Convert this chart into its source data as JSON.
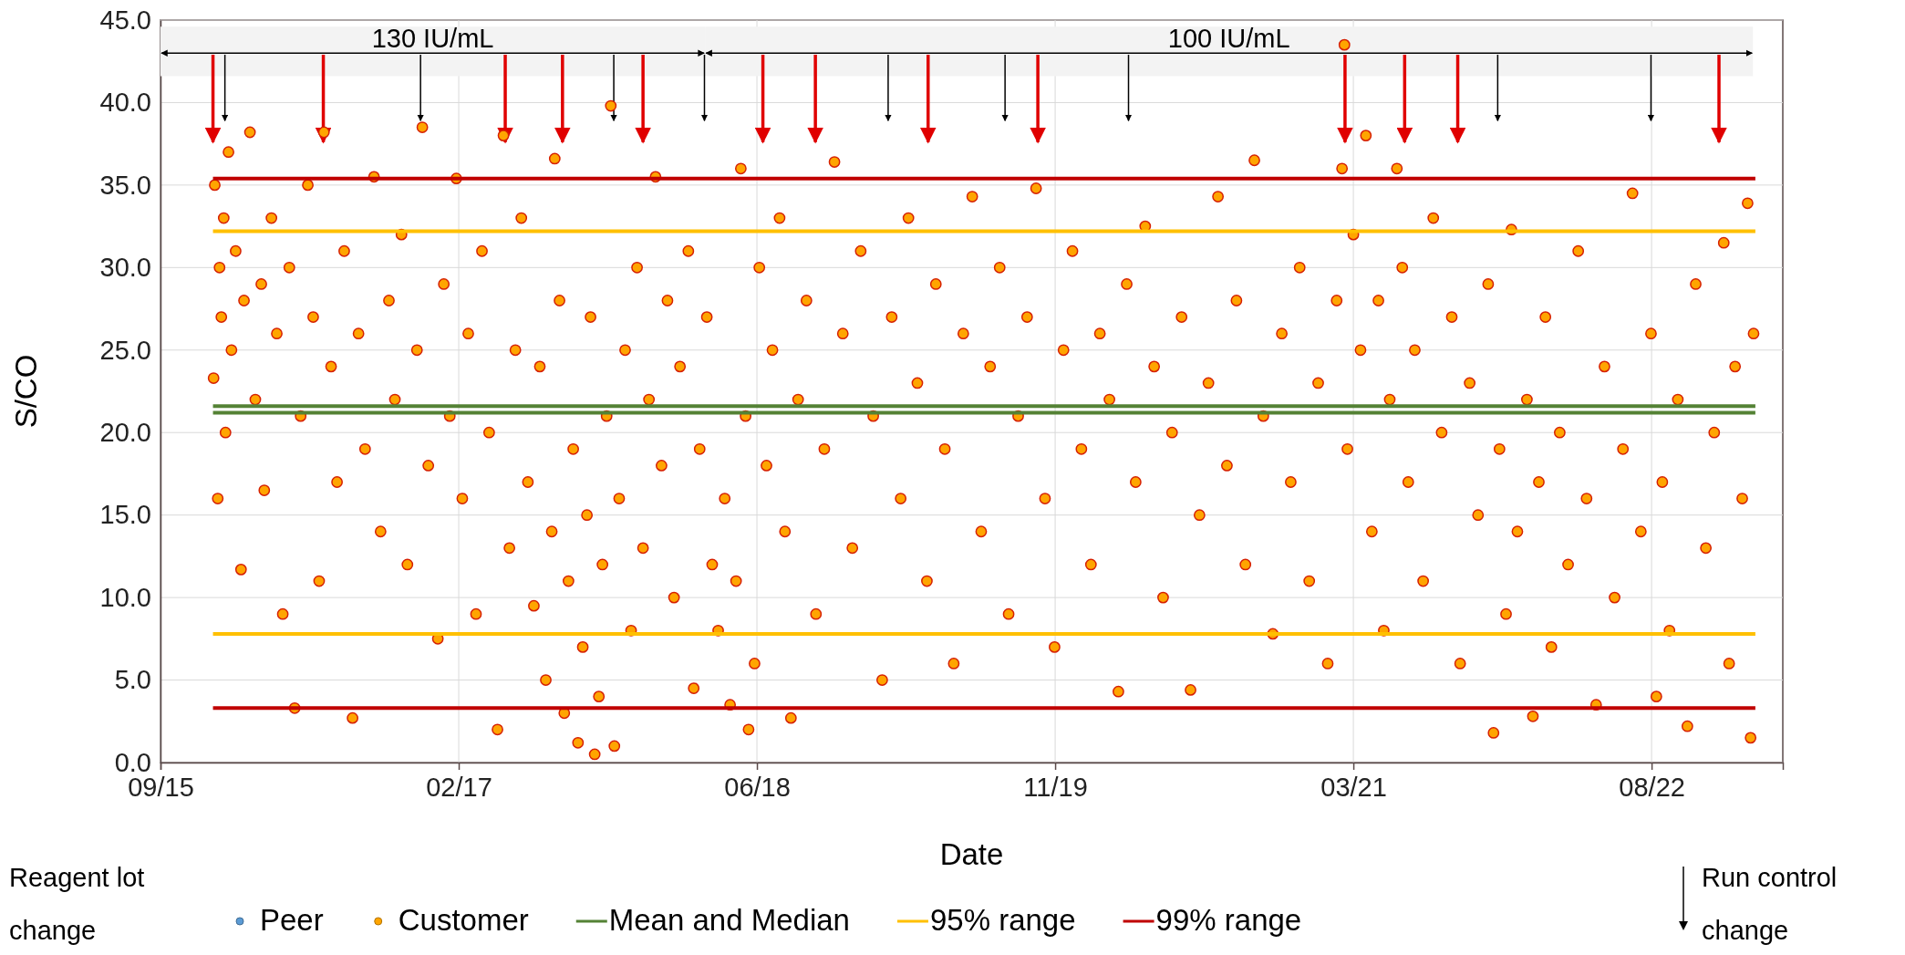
{
  "chart_data": {
    "type": "scatter",
    "xlabel": "Date",
    "ylabel": "S/CO",
    "xlim": [
      "2015-09-28",
      "2023-03-10"
    ],
    "xticks": [
      {
        "value": "2015-09-28",
        "label": "09/15"
      },
      {
        "value": "2017-02-09",
        "label": "02/17"
      },
      {
        "value": "2018-06-24",
        "label": "06/18"
      },
      {
        "value": "2019-11-06",
        "label": "11/19"
      },
      {
        "value": "2021-03-20",
        "label": "03/21"
      },
      {
        "value": "2022-08-02",
        "label": "08/22"
      }
    ],
    "ylim": [
      0,
      45
    ],
    "yticks": [
      {
        "value": 0,
        "label": "0.0"
      },
      {
        "value": 5,
        "label": "5.0"
      },
      {
        "value": 10,
        "label": "10.0"
      },
      {
        "value": 15,
        "label": "15.0"
      },
      {
        "value": 20,
        "label": "20.0"
      },
      {
        "value": 25,
        "label": "25.0"
      },
      {
        "value": 30,
        "label": "30.0"
      },
      {
        "value": 35,
        "label": "35.0"
      },
      {
        "value": 40,
        "label": "40.0"
      },
      {
        "value": 45,
        "label": "45.0"
      }
    ],
    "grid": true,
    "legend": "bottom",
    "marker": "circle",
    "series": [
      {
        "name": "Peer",
        "color": "#5b9bd5"
      },
      {
        "name": "Customer",
        "color": "#ffa500",
        "x": [
          "2015-12-26",
          "2015-12-28",
          "2016-01-02",
          "2016-01-05",
          "2016-01-08",
          "2016-01-12",
          "2016-01-15",
          "2016-01-20",
          "2016-01-25",
          "2016-02-01",
          "2016-02-10",
          "2016-02-15",
          "2016-02-25",
          "2016-03-05",
          "2016-03-15",
          "2016-03-20",
          "2016-04-01",
          "2016-04-10",
          "2016-04-20",
          "2016-05-01",
          "2016-05-10",
          "2016-05-20",
          "2016-06-01",
          "2016-06-10",
          "2016-06-20",
          "2016-06-28",
          "2016-07-10",
          "2016-07-20",
          "2016-08-01",
          "2016-08-15",
          "2016-08-25",
          "2016-09-05",
          "2016-09-20",
          "2016-10-01",
          "2016-10-15",
          "2016-10-25",
          "2016-11-05",
          "2016-11-15",
          "2016-12-01",
          "2016-12-10",
          "2016-12-20",
          "2017-01-05",
          "2017-01-15",
          "2017-01-25",
          "2017-02-05",
          "2017-02-15",
          "2017-02-25",
          "2017-03-10",
          "2017-03-20",
          "2017-04-01",
          "2017-04-15",
          "2017-04-25",
          "2017-05-05",
          "2017-05-15",
          "2017-05-25",
          "2017-06-05",
          "2017-06-15",
          "2017-06-25",
          "2017-07-05",
          "2017-07-15",
          "2017-07-20",
          "2017-07-28",
          "2017-08-05",
          "2017-08-12",
          "2017-08-20",
          "2017-08-28",
          "2017-09-05",
          "2017-09-12",
          "2017-09-18",
          "2017-09-25",
          "2017-10-02",
          "2017-10-08",
          "2017-10-15",
          "2017-10-22",
          "2017-10-28",
          "2017-11-05",
          "2017-11-15",
          "2017-11-25",
          "2017-12-05",
          "2017-12-15",
          "2017-12-25",
          "2018-01-05",
          "2018-01-15",
          "2018-01-25",
          "2018-02-05",
          "2018-02-15",
          "2018-03-01",
          "2018-03-10",
          "2018-03-20",
          "2018-04-01",
          "2018-04-10",
          "2018-04-20",
          "2018-05-01",
          "2018-05-10",
          "2018-05-20",
          "2018-05-28",
          "2018-06-05",
          "2018-06-10",
          "2018-06-20",
          "2018-06-28",
          "2018-07-10",
          "2018-07-20",
          "2018-08-01",
          "2018-08-10",
          "2018-08-20",
          "2018-09-01",
          "2018-09-15",
          "2018-10-01",
          "2018-10-15",
          "2018-11-01",
          "2018-11-15",
          "2018-12-01",
          "2018-12-15",
          "2019-01-05",
          "2019-01-20",
          "2019-02-05",
          "2019-02-20",
          "2019-03-05",
          "2019-03-20",
          "2019-04-05",
          "2019-04-20",
          "2019-05-05",
          "2019-05-20",
          "2019-06-05",
          "2019-06-20",
          "2019-07-05",
          "2019-07-20",
          "2019-08-05",
          "2019-08-20",
          "2019-09-05",
          "2019-09-20",
          "2019-10-05",
          "2019-10-20",
          "2019-11-05",
          "2019-11-20",
          "2019-12-05",
          "2019-12-20",
          "2020-01-05",
          "2020-01-20",
          "2020-02-05",
          "2020-02-20",
          "2020-03-05",
          "2020-03-20",
          "2020-04-05",
          "2020-04-20",
          "2020-05-05",
          "2020-05-20",
          "2020-06-05",
          "2020-06-20",
          "2020-07-05",
          "2020-07-20",
          "2020-08-05",
          "2020-08-20",
          "2020-09-05",
          "2020-09-20",
          "2020-10-05",
          "2020-10-20",
          "2020-11-05",
          "2020-11-20",
          "2020-12-05",
          "2020-12-20",
          "2021-01-05",
          "2021-01-20",
          "2021-02-05",
          "2021-02-20",
          "2021-03-01",
          "2021-03-05",
          "2021-03-10",
          "2021-03-20",
          "2021-04-01",
          "2021-04-10",
          "2021-04-20",
          "2021-05-01",
          "2021-05-10",
          "2021-05-20",
          "2021-06-01",
          "2021-06-10",
          "2021-06-20",
          "2021-07-01",
          "2021-07-15",
          "2021-08-01",
          "2021-08-15",
          "2021-09-01",
          "2021-09-15",
          "2021-10-01",
          "2021-10-15",
          "2021-11-01",
          "2021-11-10",
          "2021-11-20",
          "2021-12-01",
          "2021-12-10",
          "2021-12-20",
          "2022-01-05",
          "2022-01-15",
          "2022-01-25",
          "2022-02-05",
          "2022-02-15",
          "2022-03-01",
          "2022-03-15",
          "2022-04-01",
          "2022-04-15",
          "2022-05-01",
          "2022-05-15",
          "2022-06-01",
          "2022-06-15",
          "2022-07-01",
          "2022-07-15",
          "2022-08-01",
          "2022-08-10",
          "2022-08-20",
          "2022-09-01",
          "2022-09-15",
          "2022-10-01",
          "2022-10-15",
          "2022-11-01",
          "2022-11-15",
          "2022-12-01",
          "2022-12-10",
          "2022-12-20",
          "2023-01-01",
          "2023-01-10",
          "2023-01-15",
          "2023-01-20"
        ],
        "values": [
          23.3,
          35,
          16,
          30,
          27,
          33,
          20,
          37,
          25,
          31,
          11.7,
          28,
          38.2,
          22,
          29,
          16.5,
          33,
          26,
          9,
          30,
          3.3,
          21,
          35,
          27,
          11,
          38.2,
          24,
          17,
          31,
          2.7,
          26,
          19,
          35.5,
          14,
          28,
          22,
          32,
          12,
          25,
          38.5,
          18,
          7.5,
          29,
          21,
          35.4,
          16,
          26,
          9,
          31,
          20,
          2,
          38,
          13,
          25,
          33,
          17,
          9.5,
          24,
          5,
          14,
          36.6,
          28,
          3,
          11,
          19,
          1.2,
          7,
          15,
          27,
          0.5,
          4,
          12,
          21,
          39.8,
          1,
          16,
          25,
          8,
          30,
          13,
          22,
          35.5,
          18,
          28,
          10,
          24,
          31,
          4.5,
          19,
          27,
          12,
          8,
          16,
          3.5,
          11,
          36,
          21,
          2,
          6,
          30,
          18,
          25,
          33,
          14,
          2.7,
          22,
          28,
          9,
          19,
          36.4,
          26,
          13,
          31,
          21,
          5,
          27,
          16,
          33,
          23,
          11,
          29,
          19,
          6,
          26,
          34.3,
          14,
          24,
          30,
          9,
          21,
          27,
          34.8,
          16,
          7,
          25,
          31,
          19,
          12,
          26,
          22,
          4.3,
          29,
          17,
          32.5,
          24,
          10,
          20,
          27,
          4.4,
          15,
          23,
          34.3,
          18,
          28,
          12,
          36.5,
          21,
          7.8,
          26,
          17,
          30,
          11,
          23,
          6,
          28,
          36,
          43.5,
          19,
          32,
          25,
          38,
          14,
          28,
          8,
          22,
          36,
          30,
          17,
          25,
          11,
          33,
          20,
          27,
          6,
          23,
          15,
          29,
          1.8,
          19,
          9,
          32.3,
          14,
          22,
          2.8,
          17,
          27,
          7,
          20,
          12,
          31,
          16,
          3.5,
          24,
          10,
          19,
          34.5,
          14,
          26,
          4,
          17,
          8,
          22,
          2.2,
          29,
          13,
          20,
          31.5,
          6,
          24,
          16,
          33.9,
          1.5,
          26
        ]
      },
      {
        "name": "Mean and Median",
        "type": "line",
        "marker": "none",
        "color": "#548235",
        "x": [
          "2015-12-25",
          "2023-01-23"
        ],
        "values": [
          21.6,
          21.6
        ]
      },
      {
        "type": "line",
        "marker": "none",
        "color": "#548235",
        "x": [
          "2015-12-25",
          "2023-01-23"
        ],
        "values": [
          21.2,
          21.2
        ]
      },
      {
        "name": "95% range",
        "type": "line",
        "marker": "none",
        "color": "#ffc000",
        "x": [
          "2015-12-25",
          "2023-01-23"
        ],
        "values": [
          32.2,
          32.2
        ]
      },
      {
        "type": "line",
        "marker": "none",
        "color": "#ffc000",
        "x": [
          "2015-12-25",
          "2023-01-23"
        ],
        "values": [
          7.8,
          7.8
        ]
      },
      {
        "name": "99% range",
        "type": "line",
        "marker": "none",
        "color": "#c00000",
        "x": [
          "2015-12-25",
          "2023-01-23"
        ],
        "values": [
          35.4,
          35.4
        ]
      },
      {
        "type": "line",
        "marker": "none",
        "color": "#c00000",
        "x": [
          "2015-12-25",
          "2023-01-23"
        ],
        "values": [
          3.3,
          3.3
        ]
      }
    ],
    "ref_lines": [
      {
        "axis": "x",
        "value": "2015-12-25",
        "color": "#e00000"
      },
      {
        "axis": "x",
        "value": "2016-06-27",
        "color": "#e00000"
      },
      {
        "axis": "x",
        "value": "2017-04-28",
        "color": "#e00000"
      },
      {
        "axis": "x",
        "value": "2017-08-02",
        "color": "#e00000"
      },
      {
        "axis": "x",
        "value": "2017-12-15",
        "color": "#e00000"
      },
      {
        "axis": "x",
        "value": "2018-07-04",
        "color": "#e00000"
      },
      {
        "axis": "x",
        "value": "2018-09-30",
        "color": "#e00000"
      },
      {
        "axis": "x",
        "value": "2019-04-07",
        "color": "#e00000"
      },
      {
        "axis": "x",
        "value": "2019-10-08",
        "color": "#e00000"
      },
      {
        "axis": "x",
        "value": "2021-03-06",
        "color": "#e00000"
      },
      {
        "axis": "x",
        "value": "2021-06-14",
        "color": "#e00000"
      },
      {
        "axis": "x",
        "value": "2021-09-11",
        "color": "#e00000"
      },
      {
        "axis": "x",
        "value": "2022-11-23",
        "color": "#e00000"
      },
      {
        "axis": "x",
        "value": "2016-01-14",
        "color": "#000000"
      },
      {
        "axis": "x",
        "value": "2016-12-07",
        "color": "#000000"
      },
      {
        "axis": "x",
        "value": "2017-10-27",
        "color": "#000000"
      },
      {
        "axis": "x",
        "value": "2018-03-28",
        "color": "#000000"
      },
      {
        "axis": "x",
        "value": "2019-01-30",
        "color": "#000000"
      },
      {
        "axis": "x",
        "value": "2019-08-14",
        "color": "#000000"
      },
      {
        "axis": "x",
        "value": "2020-03-08",
        "color": "#000000"
      },
      {
        "axis": "x",
        "value": "2021-11-17",
        "color": "#000000"
      },
      {
        "axis": "x",
        "value": "2022-08-01",
        "color": "#000000"
      }
    ],
    "bands": [
      {
        "axis": "x",
        "from": "2015-09-28",
        "to": "2018-03-29",
        "label": "130 IU/mL"
      },
      {
        "axis": "x",
        "from": "2018-03-29",
        "to": "2023-01-19",
        "label": "100 IU/mL"
      }
    ],
    "annotations": [
      "Reagent lot change",
      "Run control change"
    ]
  }
}
